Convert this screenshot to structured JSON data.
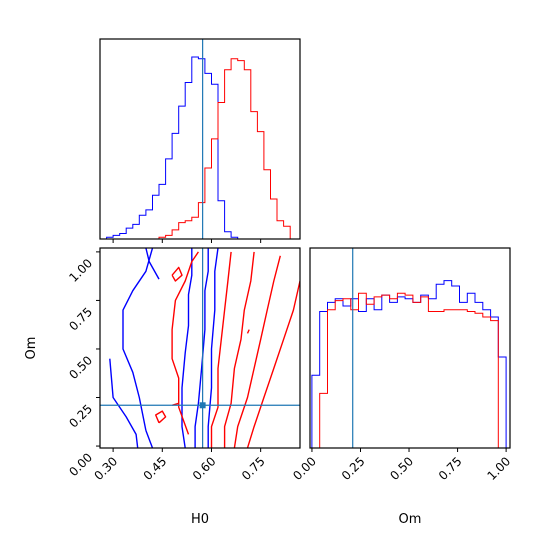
{
  "chart_data": {
    "type": "corner",
    "parameters": [
      "H0",
      "Om"
    ],
    "truth": {
      "H0": 0.573,
      "Om": 0.21
    },
    "colors": {
      "series_a": "#0000ff",
      "series_b": "#ff0000",
      "truth": "#1f77b4"
    },
    "axes": {
      "H0": {
        "label": "H0",
        "range": [
          0.26,
          0.87
        ],
        "ticks": [
          "0.30",
          "0.45",
          "0.60",
          "0.75"
        ],
        "tick_values": [
          0.3,
          0.45,
          0.6,
          0.75
        ]
      },
      "Om": {
        "label": "Om",
        "range": [
          -0.01,
          1.02
        ],
        "ticks": [
          "0.00",
          "0.25",
          "0.50",
          "0.75",
          "1.00"
        ],
        "tick_values": [
          0.0,
          0.25,
          0.5,
          0.75,
          1.0
        ]
      }
    },
    "hist_H0": {
      "bin_edges": [
        0.26,
        0.28,
        0.3,
        0.32,
        0.34,
        0.36,
        0.38,
        0.4,
        0.42,
        0.44,
        0.46,
        0.48,
        0.5,
        0.52,
        0.54,
        0.56,
        0.58,
        0.6,
        0.62,
        0.64,
        0.66,
        0.68,
        0.7,
        0.72,
        0.74,
        0.76,
        0.78,
        0.8,
        0.82,
        0.84,
        0.86
      ],
      "series": [
        {
          "color": "blue",
          "counts": [
            0.0,
            0.01,
            0.02,
            0.03,
            0.06,
            0.08,
            0.13,
            0.16,
            0.24,
            0.3,
            0.44,
            0.58,
            0.73,
            0.86,
            1.0,
            0.99,
            0.91,
            0.85,
            0.21,
            0.04,
            0.01,
            0.0,
            0.0,
            0.0,
            0.0,
            0.0,
            0.0,
            0.0,
            0.0,
            0.0
          ]
        },
        {
          "color": "red",
          "counts": [
            0.0,
            0.0,
            0.0,
            0.0,
            0.0,
            0.0,
            0.0,
            0.0,
            0.0,
            0.01,
            0.02,
            0.05,
            0.09,
            0.1,
            0.12,
            0.2,
            0.39,
            0.55,
            0.75,
            0.93,
            0.99,
            0.98,
            0.93,
            0.7,
            0.59,
            0.38,
            0.22,
            0.1,
            0.07,
            0.0
          ]
        }
      ]
    },
    "hist_Om": {
      "bin_edges": [
        0.0,
        0.04,
        0.08,
        0.12,
        0.16,
        0.2,
        0.24,
        0.28,
        0.32,
        0.36,
        0.4,
        0.44,
        0.48,
        0.52,
        0.56,
        0.6,
        0.64,
        0.68,
        0.72,
        0.76,
        0.8,
        0.84,
        0.88,
        0.92,
        0.96,
        1.0
      ],
      "series": [
        {
          "color": "blue",
          "counts": [
            0.4,
            0.75,
            0.8,
            0.82,
            0.78,
            0.82,
            0.75,
            0.82,
            0.76,
            0.84,
            0.8,
            0.83,
            0.82,
            0.8,
            0.84,
            0.82,
            0.9,
            0.92,
            0.89,
            0.8,
            0.85,
            0.8,
            0.76,
            0.72,
            0.5
          ]
        },
        {
          "color": "red",
          "counts": [
            0.0,
            0.3,
            0.76,
            0.81,
            0.82,
            0.76,
            0.85,
            0.79,
            0.83,
            0.84,
            0.82,
            0.85,
            0.84,
            0.8,
            0.83,
            0.75,
            0.75,
            0.76,
            0.76,
            0.76,
            0.75,
            0.74,
            0.72,
            0.7,
            0.0
          ]
        }
      ]
    },
    "contours": [
      {
        "color": "blue",
        "points": [
          [
            0.4,
            0.08
          ],
          [
            0.38,
            0.25
          ],
          [
            0.36,
            0.38
          ],
          [
            0.33,
            0.5
          ],
          [
            0.33,
            0.7
          ],
          [
            0.36,
            0.8
          ],
          [
            0.4,
            0.9
          ],
          [
            0.42,
            1.02
          ]
        ]
      },
      {
        "color": "blue",
        "points": [
          [
            0.42,
            -0.01
          ],
          [
            0.4,
            0.08
          ]
        ]
      },
      {
        "color": "blue",
        "points": [
          [
            0.375,
            -0.01
          ],
          [
            0.37,
            0.06
          ],
          [
            0.34,
            0.15
          ],
          [
            0.3,
            0.25
          ],
          [
            0.29,
            0.45
          ]
        ]
      },
      {
        "color": "blue",
        "points": [
          [
            0.44,
            0.86
          ],
          [
            0.41,
            0.95
          ],
          [
            0.4,
            1.02
          ]
        ]
      },
      {
        "color": "blue",
        "points": [
          [
            0.52,
            -0.01
          ],
          [
            0.51,
            0.1
          ],
          [
            0.51,
            0.3
          ],
          [
            0.52,
            0.48
          ],
          [
            0.53,
            0.62
          ],
          [
            0.53,
            0.78
          ],
          [
            0.54,
            0.88
          ],
          [
            0.54,
            1.02
          ]
        ]
      },
      {
        "color": "blue",
        "points": [
          [
            0.55,
            -0.01
          ],
          [
            0.55,
            0.1
          ],
          [
            0.56,
            0.22
          ],
          [
            0.57,
            0.4
          ],
          [
            0.58,
            0.6
          ],
          [
            0.58,
            0.8
          ],
          [
            0.59,
            0.9
          ],
          [
            0.59,
            1.02
          ]
        ]
      },
      {
        "color": "blue",
        "points": [
          [
            0.59,
            -0.01
          ],
          [
            0.59,
            0.1
          ],
          [
            0.6,
            0.3
          ],
          [
            0.6,
            0.5
          ],
          [
            0.61,
            0.7
          ],
          [
            0.61,
            0.9
          ],
          [
            0.62,
            1.02
          ]
        ]
      },
      {
        "color": "red",
        "points": [
          [
            0.53,
            0.06
          ],
          [
            0.5,
            0.2
          ],
          [
            0.5,
            0.35
          ],
          [
            0.48,
            0.45
          ],
          [
            0.48,
            0.6
          ],
          [
            0.49,
            0.75
          ],
          [
            0.52,
            0.85
          ],
          [
            0.54,
            0.95
          ],
          [
            0.56,
            1.0
          ]
        ]
      },
      {
        "color": "red",
        "points": [
          [
            0.6,
            -0.01
          ],
          [
            0.6,
            0.1
          ],
          [
            0.62,
            0.2
          ],
          [
            0.62,
            0.4
          ],
          [
            0.63,
            0.55
          ],
          [
            0.64,
            0.7
          ],
          [
            0.65,
            0.85
          ],
          [
            0.66,
            1.0
          ]
        ]
      },
      {
        "color": "red",
        "points": [
          [
            0.64,
            -0.01
          ],
          [
            0.64,
            0.1
          ],
          [
            0.66,
            0.22
          ],
          [
            0.67,
            0.4
          ],
          [
            0.69,
            0.55
          ],
          [
            0.7,
            0.7
          ],
          [
            0.72,
            0.85
          ],
          [
            0.73,
            1.0
          ]
        ]
      },
      {
        "color": "red",
        "points": [
          [
            0.67,
            -0.01
          ],
          [
            0.68,
            0.1
          ],
          [
            0.71,
            0.25
          ],
          [
            0.73,
            0.4
          ],
          [
            0.75,
            0.55
          ],
          [
            0.77,
            0.7
          ],
          [
            0.79,
            0.85
          ],
          [
            0.81,
            0.98
          ]
        ]
      },
      {
        "color": "red",
        "points": [
          [
            0.71,
            -0.01
          ],
          [
            0.73,
            0.1
          ],
          [
            0.76,
            0.25
          ],
          [
            0.79,
            0.4
          ],
          [
            0.82,
            0.55
          ],
          [
            0.85,
            0.7
          ],
          [
            0.87,
            0.85
          ]
        ]
      },
      {
        "color": "red",
        "points": [
          [
            0.48,
            0.88
          ],
          [
            0.5,
            0.92
          ],
          [
            0.51,
            0.88
          ],
          [
            0.49,
            0.85
          ],
          [
            0.48,
            0.88
          ]
        ]
      },
      {
        "color": "red",
        "points": [
          [
            0.44,
            0.12
          ],
          [
            0.46,
            0.15
          ],
          [
            0.45,
            0.18
          ],
          [
            0.43,
            0.16
          ],
          [
            0.44,
            0.12
          ]
        ]
      },
      {
        "color": "red",
        "points": [
          [
            0.48,
            0.21
          ],
          [
            0.5,
            0.22
          ]
        ]
      },
      {
        "color": "red",
        "points": [
          [
            0.71,
            0.58
          ],
          [
            0.715,
            0.6
          ]
        ]
      }
    ]
  }
}
